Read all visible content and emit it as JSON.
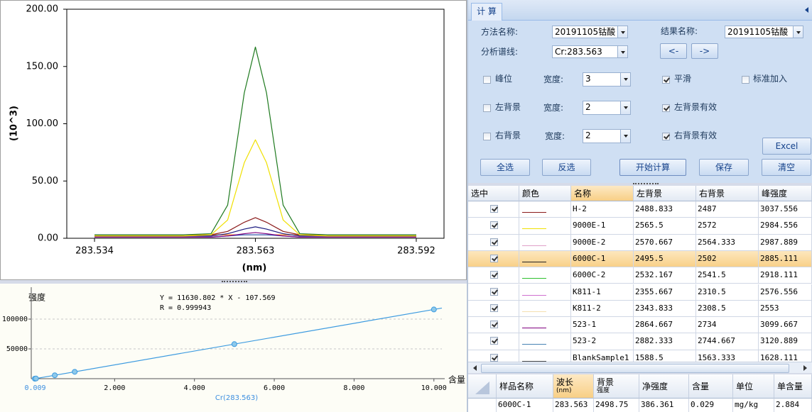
{
  "chart_data": [
    {
      "type": "line",
      "y_label": "(10^3)",
      "x_label": "(nm)",
      "x": [
        283.534,
        283.55,
        283.555,
        283.558,
        283.561,
        283.563,
        283.565,
        283.568,
        283.571,
        283.576,
        283.592
      ],
      "series": [
        {
          "color": "#ff8c1a",
          "values": [
            3,
            3,
            3,
            3,
            3,
            3,
            3,
            3,
            3,
            3,
            3
          ]
        },
        {
          "color": "#3060c0",
          "values": [
            1,
            1,
            1,
            2,
            3,
            3,
            3,
            2,
            1,
            1,
            1
          ]
        },
        {
          "color": "#800080",
          "values": [
            1,
            1,
            1,
            2,
            4,
            5,
            4,
            2,
            1,
            1,
            1
          ]
        },
        {
          "color": "#1a1a80",
          "values": [
            2,
            2,
            2,
            4,
            8,
            10,
            8,
            4,
            2,
            2,
            2
          ]
        },
        {
          "color": "#8b1a1a",
          "values": [
            2,
            2,
            3,
            6,
            14,
            18,
            14,
            6,
            3,
            2,
            2
          ]
        },
        {
          "color": "#f0e000",
          "values": [
            2,
            2,
            3,
            16,
            66,
            86,
            66,
            16,
            3,
            2,
            2
          ]
        },
        {
          "color": "#1f7a1f",
          "values": [
            3,
            3,
            4,
            29,
            127,
            167,
            127,
            29,
            4,
            3,
            3
          ]
        }
      ],
      "xlim": [
        283.529,
        283.597
      ],
      "ylim": [
        0,
        200
      ],
      "xticks": [
        283.534,
        283.563,
        283.592
      ],
      "yticks": [
        {
          "value": 0,
          "label": "0.00"
        },
        {
          "value": 50,
          "label": "50.00"
        },
        {
          "value": 100,
          "label": "100.00"
        },
        {
          "value": 150,
          "label": "150.00"
        },
        {
          "value": 200,
          "label": "200.00"
        }
      ]
    },
    {
      "type": "scatter",
      "y_label": "强度",
      "x_label": "含量",
      "x_title": "Cr(283.563)",
      "annotations": [
        "Y = 11630.802 * X - 107.569",
        "R = 0.999943"
      ],
      "points": {
        "color": "#8ec9ea",
        "x": [
          0,
          0.029,
          0.5,
          1,
          5,
          10
        ],
        "values": [
          0,
          230,
          5700,
          11500,
          58000,
          116200
        ]
      },
      "fit_line": {
        "color": "#3d9be0",
        "x": [
          0,
          10.2
        ],
        "values": [
          -108,
          118526
        ]
      },
      "xlim": [
        0,
        10.2
      ],
      "ylim": [
        0,
        150000
      ],
      "xticks": [
        {
          "value": 0.009,
          "label": "0.009"
        },
        {
          "value": 2,
          "label": "2.000"
        },
        {
          "value": 4,
          "label": "4.000"
        },
        {
          "value": 6,
          "label": "6.000"
        },
        {
          "value": 8,
          "label": "8.000"
        },
        {
          "value": 10,
          "label": "10.000"
        }
      ],
      "yticks": [
        50000,
        100000
      ],
      "grid": true
    }
  ],
  "calc_panel": {
    "tab": "计 算",
    "method_label": "方法名称:",
    "method_value": "20191105钴酸",
    "result_label": "结果名称:",
    "result_value": "20191105钴酸",
    "line_label": "分析谱线:",
    "line_value": "Cr:283.563",
    "prev_button": "<-",
    "next_button": "->",
    "peak_check": {
      "label": "峰位",
      "checked": false
    },
    "width_label": "宽度:",
    "peak_width": "3",
    "left_width": "2",
    "right_width": "2",
    "smooth_check": {
      "label": "平滑",
      "checked": true
    },
    "std_add_check": {
      "label": "标准加入",
      "checked": false
    },
    "left_bg_check": {
      "label": "左背景",
      "checked": false
    },
    "left_valid_check": {
      "label": "左背景有效",
      "checked": true
    },
    "right_bg_check": {
      "label": "右背景",
      "checked": false
    },
    "right_valid_check": {
      "label": "右背景有效",
      "checked": true
    },
    "buttons": {
      "excel": "Excel",
      "select_all": "全选",
      "invert": "反选",
      "calculate": "开始计算",
      "save": "保存",
      "clear": "清空"
    }
  },
  "results_table": {
    "columns": [
      "选中",
      "颜色",
      "名称",
      "左背景",
      "右背景",
      "峰强度"
    ],
    "selected_row": 3,
    "rows": [
      {
        "checked": true,
        "color": "#8b1a1a",
        "name": "H-2",
        "left_bg": 2488.833,
        "right_bg": 2487,
        "peak": 3037.556
      },
      {
        "checked": true,
        "color": "#f0e000",
        "name": "9000E-1",
        "left_bg": 2565.5,
        "right_bg": 2572,
        "peak": 2984.556
      },
      {
        "checked": true,
        "color": "#e0a0c8",
        "name": "9000E-2",
        "left_bg": 2570.667,
        "right_bg": 2564.333,
        "peak": 2987.889
      },
      {
        "checked": true,
        "color": "#202020",
        "name": "6000C-1",
        "left_bg": 2495.5,
        "right_bg": 2502,
        "peak": 2885.111
      },
      {
        "checked": true,
        "color": "#2ec02e",
        "name": "6000C-2",
        "left_bg": 2532.167,
        "right_bg": 2541.5,
        "peak": 2918.111
      },
      {
        "checked": true,
        "color": "#d070d0",
        "name": "K811-1",
        "left_bg": 2355.667,
        "right_bg": 2310.5,
        "peak": 2576.556
      },
      {
        "checked": true,
        "color": "#f5dfb0",
        "name": "K811-2",
        "left_bg": 2343.833,
        "right_bg": 2308.5,
        "peak": 2553
      },
      {
        "checked": true,
        "color": "#800080",
        "name": "523-1",
        "left_bg": 2864.667,
        "right_bg": 2734,
        "peak": 3099.667
      },
      {
        "checked": true,
        "color": "#4682b4",
        "name": "523-2",
        "left_bg": 2882.333,
        "right_bg": 2744.667,
        "peak": 3120.889
      },
      {
        "checked": true,
        "color": "#505050",
        "name": "BlankSample1",
        "left_bg": 1588.5,
        "right_bg": 1563.333,
        "peak": 1628.111
      }
    ]
  },
  "summary_table": {
    "columns": [
      [
        "样品名称"
      ],
      [
        "波长",
        "(nm)"
      ],
      [
        "背景",
        "强度"
      ],
      [
        "净强度"
      ],
      [
        "含量"
      ],
      [
        "单位"
      ],
      [
        "单含量"
      ]
    ],
    "selected_column": 1,
    "rows": [
      [
        "6000C-1",
        283.563,
        2498.75,
        386.361,
        0.029,
        "mg/kg",
        2.884
      ]
    ]
  }
}
